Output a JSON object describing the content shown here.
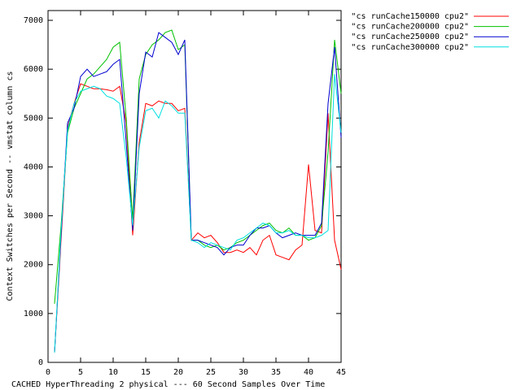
{
  "chart_data": {
    "type": "line",
    "xlabel": "CACHED HyperThreading 2 physical --- 60 Second Samples Over Time",
    "ylabel": "Context Switches per Second -- vmstat column cs",
    "x": [
      1,
      2,
      3,
      4,
      5,
      6,
      7,
      8,
      9,
      10,
      11,
      12,
      13,
      14,
      15,
      16,
      17,
      18,
      19,
      20,
      21,
      22,
      23,
      24,
      25,
      26,
      27,
      28,
      29,
      30,
      31,
      32,
      33,
      34,
      35,
      36,
      37,
      38,
      39,
      40,
      41,
      42,
      43,
      44,
      45
    ],
    "xlim": [
      0,
      45
    ],
    "xticks": [
      0,
      5,
      10,
      15,
      20,
      25,
      30,
      35,
      40,
      45
    ],
    "ylim": [
      0,
      7200
    ],
    "yticks": [
      0,
      1000,
      2000,
      3000,
      4000,
      5000,
      6000,
      7000
    ],
    "series": [
      {
        "name": "\"cs runCache150000 cpu2\"",
        "color": "#ff0000",
        "values": [
          200,
          2500,
          4800,
          5300,
          5700,
          5650,
          5600,
          5600,
          5580,
          5550,
          5650,
          4900,
          2600,
          4500,
          5300,
          5250,
          5350,
          5300,
          5300,
          5150,
          5200,
          2500,
          2650,
          2550,
          2600,
          2450,
          2250,
          2250,
          2300,
          2250,
          2350,
          2200,
          2500,
          2600,
          2200,
          2150,
          2100,
          2300,
          2400,
          4050,
          2700,
          2650,
          5100,
          2500,
          1900
        ]
      },
      {
        "name": "\"cs runCache200000 cpu2\"",
        "color": "#00c000",
        "values": [
          1200,
          2800,
          4700,
          5200,
          5500,
          5800,
          5900,
          6050,
          6200,
          6450,
          6550,
          5000,
          2900,
          5800,
          6300,
          6500,
          6600,
          6750,
          6800,
          6400,
          6500,
          2500,
          2500,
          2400,
          2350,
          2400,
          2300,
          2350,
          2450,
          2500,
          2600,
          2700,
          2800,
          2850,
          2700,
          2650,
          2750,
          2600,
          2600,
          2500,
          2550,
          2800,
          4300,
          6600,
          5500
        ]
      },
      {
        "name": "\"cs runCache250000 cpu2\"",
        "color": "#0000d0",
        "values": [
          200,
          2600,
          4900,
          5200,
          5850,
          6000,
          5850,
          5900,
          5950,
          6100,
          6200,
          4500,
          2700,
          5500,
          6350,
          6250,
          6750,
          6650,
          6550,
          6300,
          6600,
          2500,
          2500,
          2450,
          2400,
          2350,
          2200,
          2350,
          2400,
          2400,
          2600,
          2750,
          2750,
          2800,
          2650,
          2550,
          2600,
          2650,
          2600,
          2600,
          2600,
          2850,
          5300,
          6450,
          4600
        ]
      },
      {
        "name": "\"cs runCache300000 cpu2\"",
        "color": "#00e0e0",
        "values": [
          200,
          2700,
          4750,
          5300,
          5550,
          5600,
          5650,
          5600,
          5450,
          5400,
          5300,
          4200,
          2800,
          4400,
          5150,
          5200,
          5000,
          5350,
          5250,
          5100,
          5100,
          2500,
          2450,
          2350,
          2450,
          2400,
          2350,
          2300,
          2500,
          2550,
          2650,
          2750,
          2850,
          2800,
          2650,
          2650,
          2700,
          2600,
          2600,
          2550,
          2550,
          2600,
          2700,
          5900,
          4700
        ]
      }
    ]
  }
}
